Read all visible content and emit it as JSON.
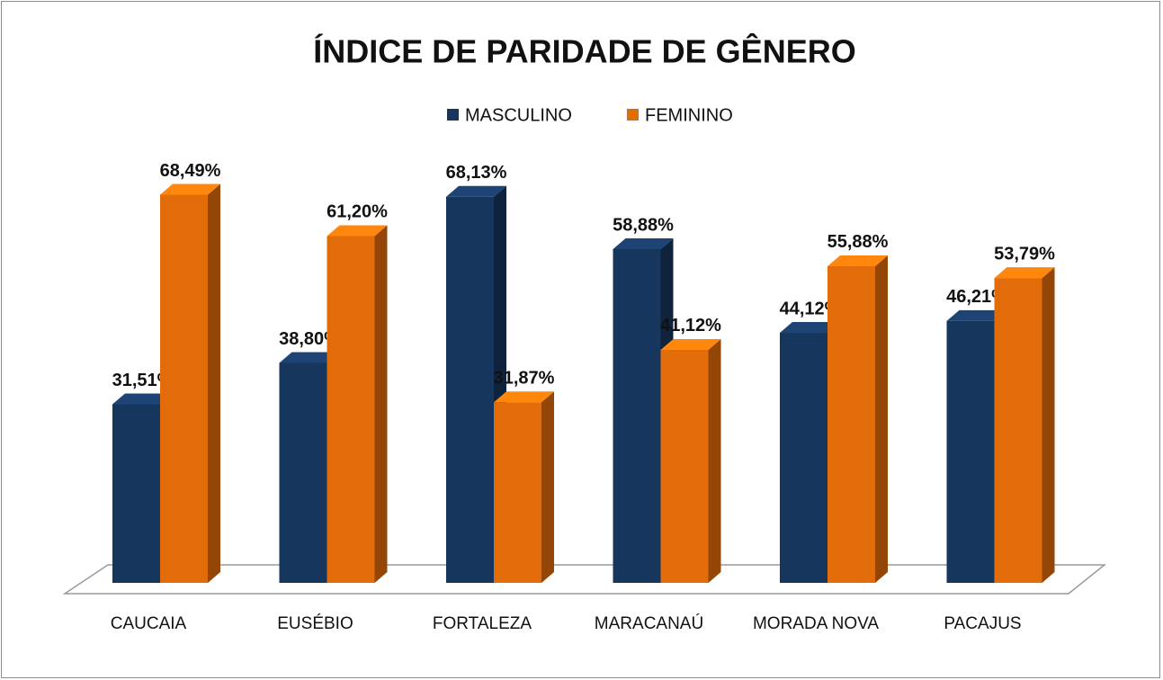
{
  "chart_data": {
    "type": "bar3d",
    "title": "ÍNDICE DE PARIDADE DE GÊNERO",
    "categories": [
      "CAUCAIA",
      "EUSÉBIO",
      "FORTALEZA",
      "MARACANAÚ",
      "MORADA NOVA",
      "PACAJUS"
    ],
    "series": [
      {
        "name": "MASCULINO",
        "color": "#17365d",
        "values": [
          31.51,
          38.8,
          68.13,
          58.88,
          44.12,
          46.21
        ],
        "value_labels": [
          "31,51%",
          "38,80%",
          "68,13%",
          "58,88%",
          "44,12%",
          "46,21%"
        ]
      },
      {
        "name": "FEMININO",
        "color": "#e36c0a",
        "values": [
          68.49,
          61.2,
          31.87,
          41.12,
          55.88,
          53.79
        ],
        "value_labels": [
          "68,49%",
          "61,20%",
          "31,87%",
          "41,12%",
          "55,88%",
          "53,79%"
        ]
      }
    ],
    "legend": "top"
  }
}
